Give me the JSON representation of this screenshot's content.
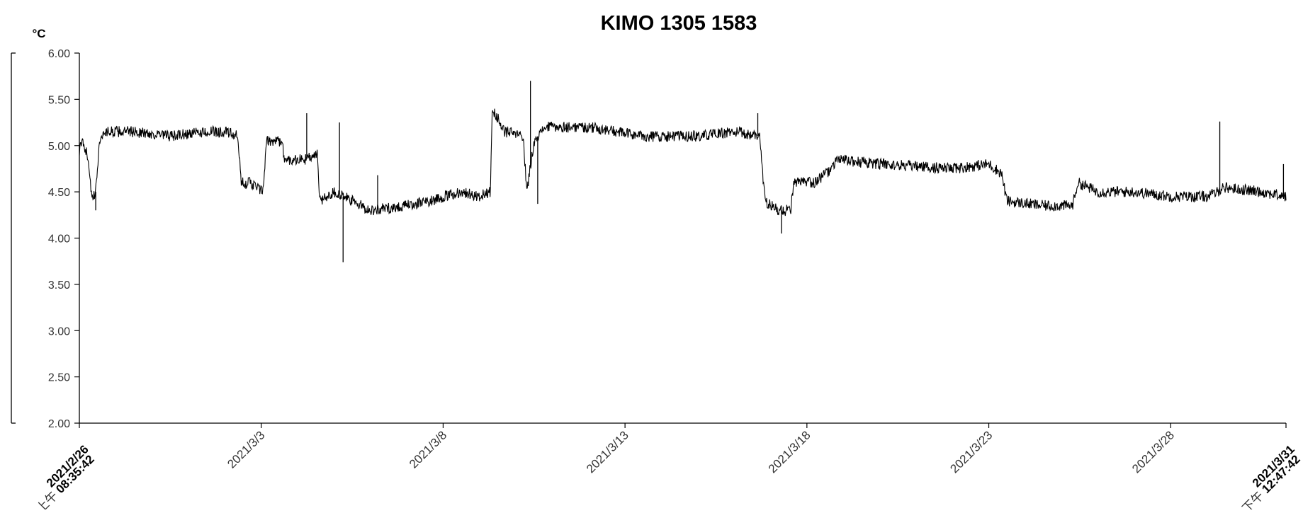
{
  "chart_data": {
    "type": "line",
    "title": "KIMO 1305 1583",
    "ylabel": "°C",
    "ylim": [
      2.0,
      6.0
    ],
    "y_ticks": [
      "2.00",
      "2.50",
      "3.00",
      "3.50",
      "4.00",
      "4.50",
      "5.00",
      "5.50",
      "6.00"
    ],
    "x_ticks": [
      {
        "label": "2021/3/3",
        "day": 5
      },
      {
        "label": "2021/3/8",
        "day": 10
      },
      {
        "label": "2021/3/13",
        "day": 15
      },
      {
        "label": "2021/3/18",
        "day": 20
      },
      {
        "label": "2021/3/23",
        "day": 25
      },
      {
        "label": "2021/3/28",
        "day": 30
      }
    ],
    "x_start": {
      "date": "2021/2/26",
      "time": "08:35:42",
      "ampm": "上午"
    },
    "x_end": {
      "date": "2021/3/31",
      "time": "12:47:42",
      "ampm": "下午"
    },
    "grid": false,
    "series": [
      {
        "color": "#000000",
        "noise": 0.06,
        "points": [
          [
            0.0,
            4.95
          ],
          [
            0.1,
            5.05
          ],
          [
            0.25,
            4.85
          ],
          [
            0.35,
            4.4
          ],
          [
            0.45,
            4.5
          ],
          [
            0.55,
            5.05
          ],
          [
            0.7,
            5.15
          ],
          [
            1.5,
            5.15
          ],
          [
            2.5,
            5.1
          ],
          [
            3.5,
            5.15
          ],
          [
            4.0,
            5.15
          ],
          [
            4.35,
            5.1
          ],
          [
            4.45,
            4.6
          ],
          [
            4.7,
            4.6
          ],
          [
            5.05,
            4.5
          ],
          [
            5.15,
            5.05
          ],
          [
            5.55,
            5.05
          ],
          [
            5.65,
            4.85
          ],
          [
            6.2,
            4.85
          ],
          [
            6.55,
            4.9
          ],
          [
            6.6,
            4.4
          ],
          [
            7.0,
            4.5
          ],
          [
            8.0,
            4.3
          ],
          [
            9.0,
            4.35
          ],
          [
            9.6,
            4.4
          ],
          [
            10.5,
            4.5
          ],
          [
            11.0,
            4.45
          ],
          [
            11.3,
            4.5
          ],
          [
            11.35,
            5.4
          ],
          [
            11.7,
            5.15
          ],
          [
            12.2,
            5.1
          ],
          [
            12.3,
            4.5
          ],
          [
            12.5,
            5.05
          ],
          [
            12.8,
            5.2
          ],
          [
            14.0,
            5.2
          ],
          [
            15.5,
            5.1
          ],
          [
            17.0,
            5.1
          ],
          [
            18.0,
            5.15
          ],
          [
            18.7,
            5.1
          ],
          [
            18.85,
            4.4
          ],
          [
            19.2,
            4.3
          ],
          [
            19.55,
            4.3
          ],
          [
            19.65,
            4.6
          ],
          [
            20.2,
            4.6
          ],
          [
            20.7,
            4.75
          ],
          [
            20.8,
            4.85
          ],
          [
            22.0,
            4.8
          ],
          [
            24.0,
            4.75
          ],
          [
            25.0,
            4.8
          ],
          [
            25.35,
            4.7
          ],
          [
            25.5,
            4.4
          ],
          [
            26.5,
            4.35
          ],
          [
            27.3,
            4.35
          ],
          [
            27.45,
            4.6
          ],
          [
            28.0,
            4.5
          ],
          [
            29.0,
            4.5
          ],
          [
            30.0,
            4.45
          ],
          [
            31.0,
            4.45
          ],
          [
            31.3,
            4.5
          ],
          [
            31.4,
            4.55
          ],
          [
            32.5,
            4.5
          ],
          [
            33.15,
            4.45
          ]
        ],
        "spikes": [
          {
            "day": 0.45,
            "value": 4.3
          },
          {
            "day": 6.25,
            "value": 5.35
          },
          {
            "day": 7.15,
            "value": 5.25
          },
          {
            "day": 7.25,
            "value": 3.74
          },
          {
            "day": 8.2,
            "value": 4.68
          },
          {
            "day": 12.4,
            "value": 5.7
          },
          {
            "day": 12.6,
            "value": 4.37
          },
          {
            "day": 18.65,
            "value": 5.35
          },
          {
            "day": 19.3,
            "value": 4.05
          },
          {
            "day": 31.35,
            "value": 5.26
          },
          {
            "day": 33.1,
            "value": 4.8
          }
        ]
      }
    ]
  }
}
